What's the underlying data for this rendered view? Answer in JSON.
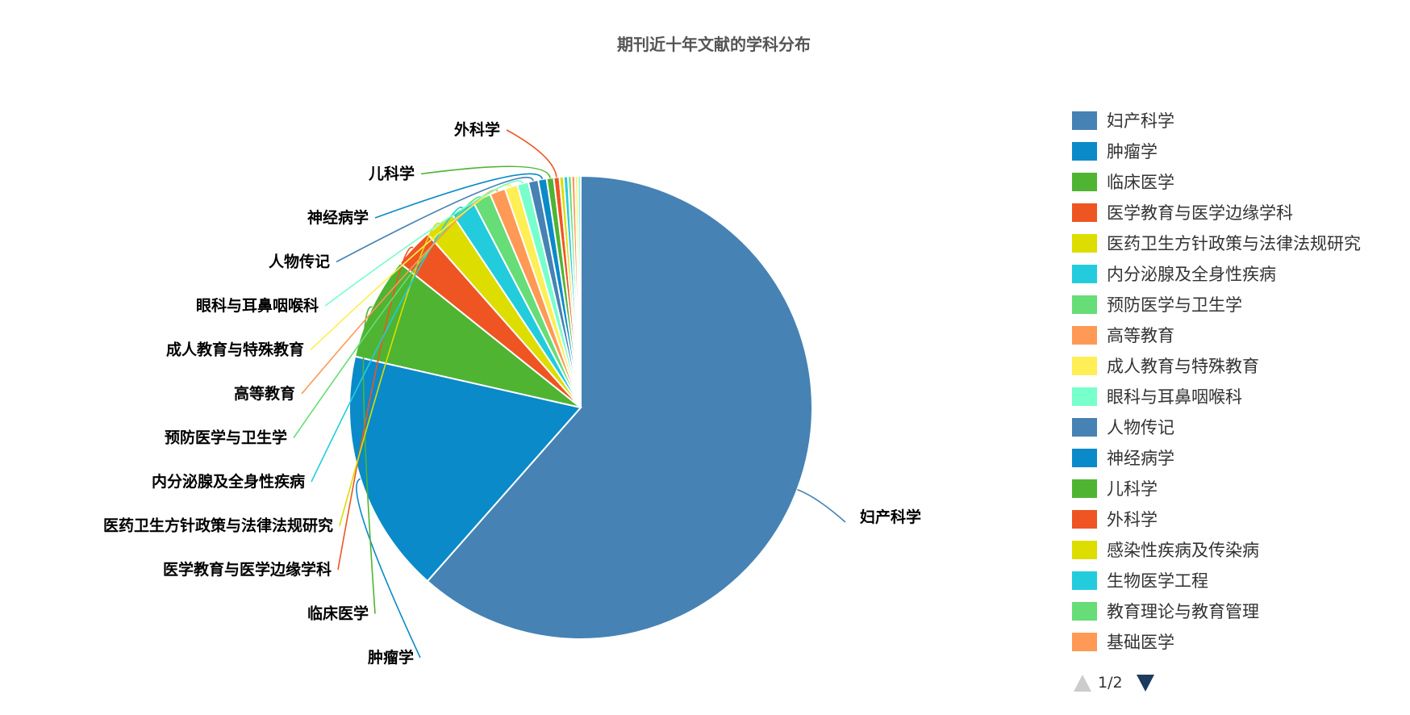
{
  "chart_data": {
    "type": "pie",
    "title": "期刊近十年文献的学科分布",
    "legend_position": "right",
    "slices": [
      {
        "name": "妇产科学",
        "value": 625,
        "color": "#4682b4"
      },
      {
        "name": "肿瘤学",
        "value": 173,
        "color": "#0a8ac8"
      },
      {
        "name": "临床医学",
        "value": 73,
        "color": "#4fb432"
      },
      {
        "name": "医学教育与医学边缘学科",
        "value": 28,
        "color": "#ee5522"
      },
      {
        "name": "医药卫生方针政策与法律法规研究",
        "value": 22,
        "color": "#dddd00"
      },
      {
        "name": "内分泌腺及全身性疾病",
        "value": 17,
        "color": "#22ccdd"
      },
      {
        "name": "预防医学与卫生学",
        "value": 13,
        "color": "#66dd77"
      },
      {
        "name": "高等教育",
        "value": 11,
        "color": "#ff9955"
      },
      {
        "name": "成人教育与特殊教育",
        "value": 9,
        "color": "#ffee55"
      },
      {
        "name": "眼科与耳鼻咽喉科",
        "value": 8,
        "color": "#77ffcc"
      },
      {
        "name": "人物传记",
        "value": 7,
        "color": "#4682b4"
      },
      {
        "name": "神经病学",
        "value": 6,
        "color": "#0a8ac8"
      },
      {
        "name": "儿科学",
        "value": 5,
        "color": "#4fb432"
      },
      {
        "name": "外科学",
        "value": 4,
        "color": "#ee5522"
      },
      {
        "name": "感染性疾病及传染病",
        "value": 3,
        "color": "#dddd00"
      },
      {
        "name": "生物医学工程",
        "value": 3,
        "color": "#22ccdd"
      },
      {
        "name": "教育理论与教育管理",
        "value": 2.5,
        "color": "#66dd77"
      },
      {
        "name": "基础医学",
        "value": 2.5,
        "color": "#ff9955"
      },
      {
        "name": "",
        "value": 2,
        "color": "#ffee55"
      },
      {
        "name": "",
        "value": 2,
        "color": "#77ffcc"
      }
    ],
    "outside_labels": [
      "妇产科学",
      "肿瘤学",
      "临床医学",
      "医学教育与医学边缘学科",
      "医药卫生方针政策与法律法规研究",
      "内分泌腺及全身性疾病",
      "预防医学与卫生学",
      "高等教育",
      "成人教育与特殊教育",
      "眼科与耳鼻咽喉科",
      "人物传记",
      "神经病学",
      "儿科学",
      "外科学"
    ],
    "legend_items": [
      "妇产科学",
      "肿瘤学",
      "临床医学",
      "医学教育与医学边缘学科",
      "医药卫生方针政策与法律法规研究",
      "内分泌腺及全身性疾病",
      "预防医学与卫生学",
      "高等教育",
      "成人教育与特殊教育",
      "眼科与耳鼻咽喉科",
      "人物传记",
      "神经病学",
      "儿科学",
      "外科学",
      "感染性疾病及传染病",
      "生物医学工程",
      "教育理论与教育管理",
      "基础医学"
    ]
  },
  "legend_pager": {
    "text": "1/2",
    "prev_icon": "triangle-up-icon",
    "next_icon": "triangle-down-icon",
    "prev_color": "#cccccc",
    "next_color": "#1f3a5f"
  }
}
